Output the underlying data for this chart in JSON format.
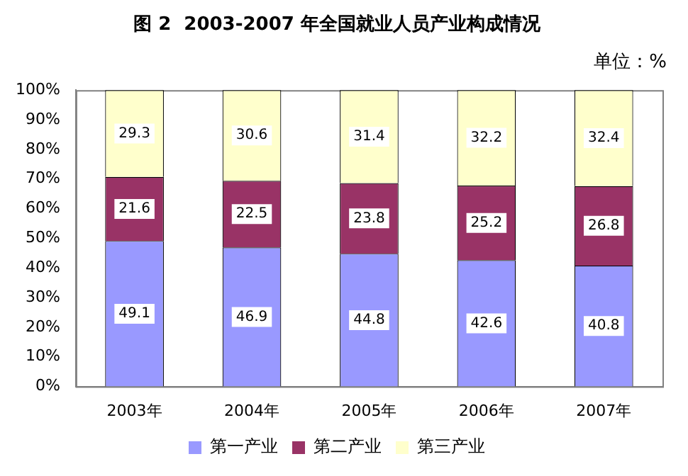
{
  "chart_data": {
    "type": "bar",
    "stacked": true,
    "title": "图 2  2003-2007 年全国就业人员产业构成情况",
    "annotations": [
      "单位：%"
    ],
    "categories": [
      "2003年",
      "2004年",
      "2005年",
      "2006年",
      "2007年"
    ],
    "series": [
      {
        "name": "第一产业",
        "color": "#9999ff",
        "values": [
          49.1,
          46.9,
          44.8,
          42.6,
          40.8
        ]
      },
      {
        "name": "第二产业",
        "color": "#993366",
        "values": [
          21.6,
          22.5,
          23.8,
          25.2,
          26.8
        ]
      },
      {
        "name": "第三产业",
        "color": "#ffffcc",
        "values": [
          29.3,
          30.6,
          31.4,
          32.2,
          32.4
        ]
      }
    ],
    "ylim": [
      0,
      100
    ],
    "yticks": [
      {
        "value": 0,
        "label": "0%"
      },
      {
        "value": 10,
        "label": "10%"
      },
      {
        "value": 20,
        "label": "20%"
      },
      {
        "value": 30,
        "label": "30%"
      },
      {
        "value": 40,
        "label": "40%"
      },
      {
        "value": 50,
        "label": "50%"
      },
      {
        "value": 60,
        "label": "60%"
      },
      {
        "value": 70,
        "label": "70%"
      },
      {
        "value": 80,
        "label": "80%"
      },
      {
        "value": 90,
        "label": "90%"
      },
      {
        "value": 100,
        "label": "100%"
      }
    ],
    "data_labels": true,
    "legend": "bottom",
    "grid": false
  }
}
